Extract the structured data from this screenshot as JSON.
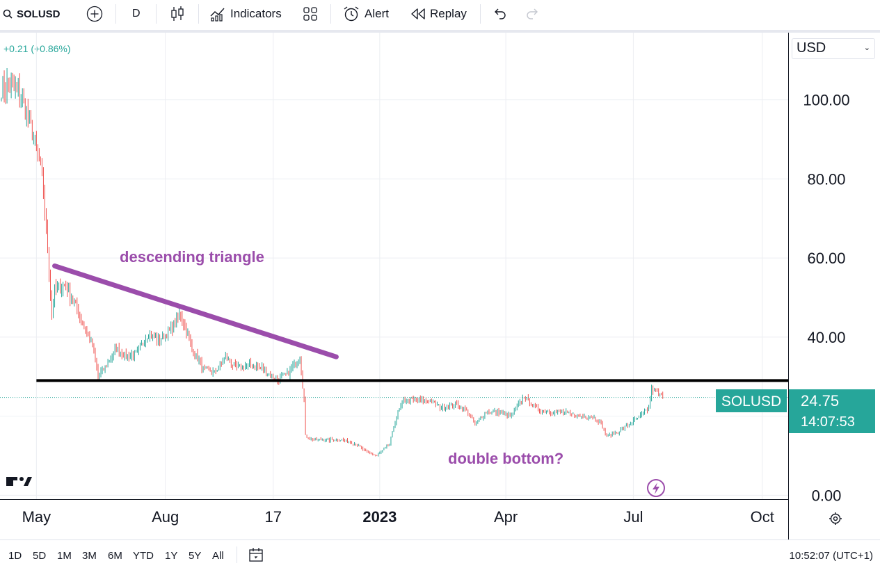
{
  "toolbar": {
    "symbol": "SOLUSD",
    "interval": "D",
    "indicators_label": "Indicators",
    "alert_label": "Alert",
    "replay_label": "Replay"
  },
  "price_change": "+0.21 (+0.86%)",
  "currency_select": {
    "value": "USD"
  },
  "colors": {
    "up": "#26a69a",
    "down": "#ef5350",
    "annotation": "#9b4dab",
    "support_line": "#000000",
    "label_bg": "#26a69a"
  },
  "last_price_label": {
    "symbol": "SOLUSD",
    "price": "24.75",
    "countdown": "14:07:53"
  },
  "range_buttons": [
    "1D",
    "5D",
    "1M",
    "3M",
    "6M",
    "YTD",
    "1Y",
    "5Y",
    "All"
  ],
  "clock": "10:52:07 (UTC+1)",
  "chart_data": {
    "type": "candlestick",
    "symbol": "SOLUSD",
    "interval": "D",
    "y_ticks": [
      "100.00",
      "80.00",
      "60.00",
      "40.00",
      "0.00"
    ],
    "y_tick_values": [
      100,
      80,
      60,
      40,
      0
    ],
    "ylim": [
      -1,
      117
    ],
    "x_ticks": [
      {
        "label": "May",
        "date": "2022-05-01",
        "bold": false
      },
      {
        "label": "Aug",
        "date": "2022-08-01",
        "bold": false
      },
      {
        "label": "17",
        "date": "2022-10-17",
        "bold": false
      },
      {
        "label": "2023",
        "date": "2023-01-01",
        "bold": true
      },
      {
        "label": "Apr",
        "date": "2023-04-01",
        "bold": false
      },
      {
        "label": "Jul",
        "date": "2023-07-01",
        "bold": false
      },
      {
        "label": "Oct",
        "date": "2023-10-01",
        "bold": false
      }
    ],
    "xlim": [
      "2022-04-05",
      "2023-10-20"
    ],
    "last_price": 24.75,
    "path": [
      {
        "date": "2022-04-06",
        "close": 103
      },
      {
        "date": "2022-04-12",
        "close": 104
      },
      {
        "date": "2022-04-20",
        "close": 101
      },
      {
        "date": "2022-04-27",
        "close": 93
      },
      {
        "date": "2022-05-03",
        "close": 85
      },
      {
        "date": "2022-05-06",
        "close": 77
      },
      {
        "date": "2022-05-09",
        "close": 62
      },
      {
        "date": "2022-05-12",
        "close": 45
      },
      {
        "date": "2022-05-14",
        "close": 52
      },
      {
        "date": "2022-05-22",
        "close": 53
      },
      {
        "date": "2022-05-31",
        "close": 46
      },
      {
        "date": "2022-06-10",
        "close": 38
      },
      {
        "date": "2022-06-14",
        "close": 30
      },
      {
        "date": "2022-06-20",
        "close": 33
      },
      {
        "date": "2022-06-27",
        "close": 37
      },
      {
        "date": "2022-07-04",
        "close": 35
      },
      {
        "date": "2022-07-12",
        "close": 36
      },
      {
        "date": "2022-07-20",
        "close": 41
      },
      {
        "date": "2022-07-27",
        "close": 39
      },
      {
        "date": "2022-08-05",
        "close": 42
      },
      {
        "date": "2022-08-12",
        "close": 46
      },
      {
        "date": "2022-08-20",
        "close": 37
      },
      {
        "date": "2022-08-28",
        "close": 32
      },
      {
        "date": "2022-09-05",
        "close": 31
      },
      {
        "date": "2022-09-13",
        "close": 35
      },
      {
        "date": "2022-09-21",
        "close": 32
      },
      {
        "date": "2022-10-01",
        "close": 33
      },
      {
        "date": "2022-10-10",
        "close": 32
      },
      {
        "date": "2022-10-20",
        "close": 29
      },
      {
        "date": "2022-10-28",
        "close": 31
      },
      {
        "date": "2022-11-05",
        "close": 35
      },
      {
        "date": "2022-11-08",
        "close": 24
      },
      {
        "date": "2022-11-09",
        "close": 15
      },
      {
        "date": "2022-11-15",
        "close": 14
      },
      {
        "date": "2022-11-25",
        "close": 14
      },
      {
        "date": "2022-12-05",
        "close": 14
      },
      {
        "date": "2022-12-15",
        "close": 13
      },
      {
        "date": "2022-12-22",
        "close": 11
      },
      {
        "date": "2022-12-30",
        "close": 10
      },
      {
        "date": "2023-01-08",
        "close": 13
      },
      {
        "date": "2023-01-13",
        "close": 20
      },
      {
        "date": "2023-01-18",
        "close": 24
      },
      {
        "date": "2023-01-28",
        "close": 24
      },
      {
        "date": "2023-02-05",
        "close": 24
      },
      {
        "date": "2023-02-15",
        "close": 22
      },
      {
        "date": "2023-02-25",
        "close": 23
      },
      {
        "date": "2023-03-05",
        "close": 21
      },
      {
        "date": "2023-03-10",
        "close": 18
      },
      {
        "date": "2023-03-18",
        "close": 21
      },
      {
        "date": "2023-03-28",
        "close": 21
      },
      {
        "date": "2023-04-05",
        "close": 20
      },
      {
        "date": "2023-04-14",
        "close": 25
      },
      {
        "date": "2023-04-22",
        "close": 22
      },
      {
        "date": "2023-05-02",
        "close": 21
      },
      {
        "date": "2023-05-12",
        "close": 21
      },
      {
        "date": "2023-05-22",
        "close": 20
      },
      {
        "date": "2023-06-02",
        "close": 20
      },
      {
        "date": "2023-06-08",
        "close": 18
      },
      {
        "date": "2023-06-12",
        "close": 15
      },
      {
        "date": "2023-06-20",
        "close": 16
      },
      {
        "date": "2023-06-28",
        "close": 18
      },
      {
        "date": "2023-07-06",
        "close": 20
      },
      {
        "date": "2023-07-12",
        "close": 22
      },
      {
        "date": "2023-07-14",
        "close": 27
      },
      {
        "date": "2023-07-18",
        "close": 26
      },
      {
        "date": "2023-07-22",
        "close": 24.75
      }
    ],
    "annotations": [
      {
        "type": "text",
        "text": "descending triangle",
        "date": "2022-08-20",
        "price": 59
      },
      {
        "type": "text",
        "text": "double bottom?",
        "date": "2023-04-01",
        "price": 8
      },
      {
        "type": "trendline",
        "from": {
          "date": "2022-05-14",
          "price": 58
        },
        "to": {
          "date": "2022-12-01",
          "price": 35
        }
      },
      {
        "type": "horizontal_line",
        "from_date": "2022-05-01",
        "to_date": "2023-10-20",
        "price": 29
      }
    ]
  }
}
